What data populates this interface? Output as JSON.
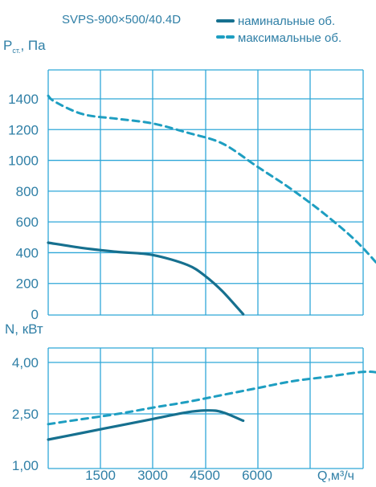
{
  "colors": {
    "background": "#ffffff",
    "grid": "#2fa7d8",
    "nominal": "#16708f",
    "maximum": "#1e9ec1",
    "text": "#2f7fa6"
  },
  "chart_data": [
    {
      "type": "line",
      "title": "SVPS-900×500/40.4D",
      "ylabel_main": "P",
      "ylabel_sub": "ст.",
      "ylabel_unit": ", Па",
      "ylim": [
        0,
        1400
      ],
      "yticks": [
        "0",
        "200",
        "400",
        "600",
        "800",
        "1000",
        "1200",
        "1400"
      ],
      "grid": true,
      "legend_position": "top-right",
      "legend": [
        {
          "label": "наминальные об.",
          "style": "solid"
        },
        {
          "label": "максимальные об.",
          "style": "dashed"
        }
      ],
      "series": [
        {
          "name": "наминальные об.",
          "style": "solid",
          "x": [
            0,
            1000,
            2000,
            3000,
            4000,
            4500,
            5000,
            5600
          ],
          "y": [
            465,
            430,
            405,
            385,
            320,
            250,
            150,
            0
          ]
        },
        {
          "name": "максимальные об.",
          "style": "dashed",
          "x": [
            0,
            200,
            1000,
            2000,
            3000,
            4000,
            5000,
            6000,
            7000,
            8000,
            9000,
            10100,
            10500
          ],
          "y": [
            1420,
            1380,
            1300,
            1270,
            1240,
            1180,
            1110,
            960,
            810,
            640,
            440,
            150,
            0
          ]
        }
      ]
    },
    {
      "type": "line",
      "ylabel": "N, кВт",
      "xlabel": "Q,м³/ч",
      "ylim": [
        1.0,
        4.0
      ],
      "yticks": [
        "1,00",
        "2,50",
        "4,00"
      ],
      "xticks": [
        "1500",
        "3000",
        "4500",
        "6000"
      ],
      "grid": true,
      "series": [
        {
          "name": "наминальные об.",
          "style": "solid",
          "x": [
            0,
            1000,
            2000,
            3000,
            4000,
            4600,
            5000,
            5600
          ],
          "y": [
            1.75,
            1.95,
            2.15,
            2.35,
            2.55,
            2.6,
            2.55,
            2.3
          ]
        },
        {
          "name": "максимальные об.",
          "style": "dashed",
          "x": [
            0,
            1000,
            2000,
            3000,
            4000,
            5000,
            6000,
            7000,
            8000,
            9000,
            9500,
            10000,
            10500
          ],
          "y": [
            2.2,
            2.35,
            2.5,
            2.68,
            2.85,
            3.05,
            3.25,
            3.45,
            3.58,
            3.72,
            3.7,
            3.55,
            3.3
          ]
        }
      ]
    }
  ]
}
